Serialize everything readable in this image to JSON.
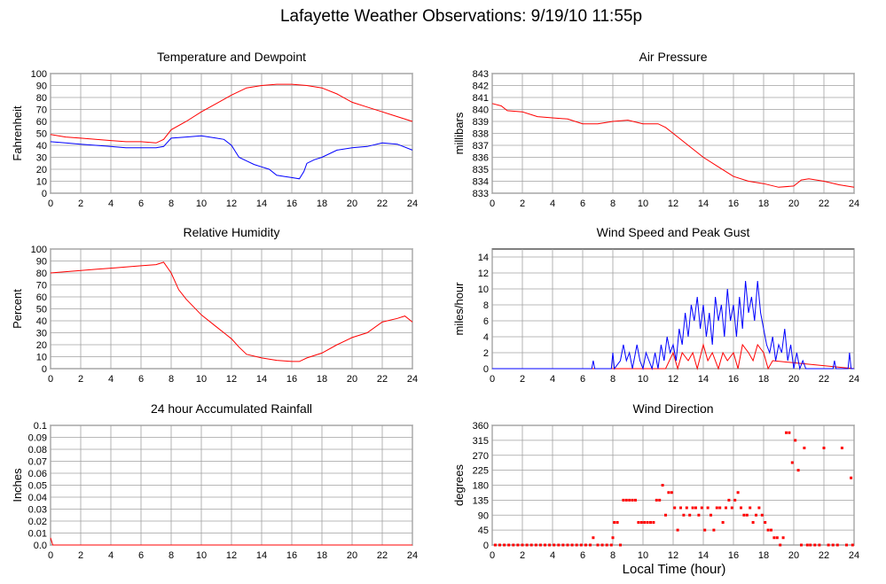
{
  "title": "Lafayette Weather Observations: 9/19/10 11:55p",
  "xaxis_title": "Local Time (hour)",
  "colors": {
    "temperature": "#ff0000",
    "dewpoint": "#0000ff",
    "grid": "#a0a0a0",
    "axis": "#000000"
  },
  "chart_data": [
    {
      "type": "line",
      "title": "Temperature and Dewpoint",
      "ylabel": "Fahrenheit",
      "xlim": [
        0,
        24
      ],
      "ylim": [
        0,
        100
      ],
      "xticks": [
        0,
        2,
        4,
        6,
        8,
        10,
        12,
        14,
        16,
        18,
        20,
        22,
        24
      ],
      "yticks": [
        0,
        10,
        20,
        30,
        40,
        50,
        60,
        70,
        80,
        90,
        100
      ],
      "series": [
        {
          "color": "#ff0000",
          "x": [
            0,
            1,
            2,
            3,
            4,
            5,
            6,
            7,
            7.5,
            8,
            9,
            10,
            11,
            12,
            13,
            14,
            15,
            16,
            17,
            18,
            19,
            20,
            21,
            22,
            23,
            24
          ],
          "y": [
            49,
            47,
            46,
            45,
            44,
            43,
            43,
            42,
            45,
            53,
            60,
            68,
            75,
            82,
            88,
            90,
            91,
            91,
            90,
            88,
            83,
            76,
            72,
            68,
            64,
            60
          ]
        },
        {
          "color": "#0000ff",
          "x": [
            0,
            1,
            2,
            3,
            4,
            5,
            6,
            7,
            7.5,
            8,
            9,
            10,
            11,
            11.5,
            12,
            12.5,
            13,
            13.5,
            14,
            14.5,
            15,
            15.5,
            16,
            16.5,
            16.8,
            17,
            17.5,
            18,
            19,
            20,
            21,
            22,
            23,
            24
          ],
          "y": [
            43,
            42,
            41,
            40,
            39,
            38,
            38,
            38,
            39,
            46,
            47,
            48,
            46,
            45,
            40,
            30,
            27,
            24,
            22,
            20,
            15,
            14,
            13,
            12,
            18,
            25,
            28,
            30,
            36,
            38,
            39,
            42,
            41,
            36
          ]
        }
      ]
    },
    {
      "type": "line",
      "title": "Air Pressure",
      "ylabel": "millibars",
      "xlim": [
        0,
        24
      ],
      "ylim": [
        833,
        843
      ],
      "xticks": [
        0,
        2,
        4,
        6,
        8,
        10,
        12,
        14,
        16,
        18,
        20,
        22,
        24
      ],
      "yticks": [
        833,
        834,
        835,
        836,
        837,
        838,
        839,
        840,
        841,
        842,
        843
      ],
      "series": [
        {
          "color": "#ff0000",
          "x": [
            0,
            0.6,
            1,
            2,
            3,
            4,
            5,
            6,
            7,
            8,
            9,
            10,
            11,
            11.5,
            12,
            13,
            14,
            15,
            16,
            17,
            18,
            19,
            20,
            20.5,
            21,
            22,
            23,
            24
          ],
          "y": [
            840.5,
            840.3,
            839.9,
            839.8,
            839.4,
            839.3,
            839.2,
            838.8,
            838.8,
            839.0,
            839.1,
            838.8,
            838.8,
            838.5,
            838.0,
            837.0,
            836.0,
            835.2,
            834.4,
            834.0,
            833.8,
            833.5,
            833.6,
            834.1,
            834.2,
            834.0,
            833.7,
            833.5
          ]
        }
      ]
    },
    {
      "type": "line",
      "title": "Relative Humidity",
      "ylabel": "Percent",
      "xlim": [
        0,
        24
      ],
      "ylim": [
        0,
        100
      ],
      "xticks": [
        0,
        2,
        4,
        6,
        8,
        10,
        12,
        14,
        16,
        18,
        20,
        22,
        24
      ],
      "yticks": [
        0,
        10,
        20,
        30,
        40,
        50,
        60,
        70,
        80,
        90,
        100
      ],
      "series": [
        {
          "color": "#ff0000",
          "x": [
            0,
            1,
            2,
            3,
            4,
            5,
            6,
            7,
            7.5,
            8,
            8.5,
            9,
            10,
            11,
            12,
            12.5,
            13,
            14,
            15,
            16,
            16.5,
            17,
            18,
            19,
            20,
            21,
            22,
            23,
            23.5,
            24
          ],
          "y": [
            80,
            81,
            82,
            83,
            84,
            85,
            86,
            87,
            89,
            80,
            66,
            58,
            45,
            35,
            25,
            18,
            12,
            9,
            7,
            6,
            6,
            9,
            13,
            20,
            26,
            30,
            39,
            42,
            44,
            39
          ]
        }
      ]
    },
    {
      "type": "line",
      "title": "Wind Speed and Peak Gust",
      "ylabel": "miles/hour",
      "xlim": [
        0,
        24
      ],
      "ylim": [
        0,
        15
      ],
      "xticks": [
        0,
        2,
        4,
        6,
        8,
        10,
        12,
        14,
        16,
        18,
        20,
        22,
        24
      ],
      "yticks": [
        0,
        2,
        4,
        6,
        8,
        10,
        12,
        14
      ],
      "series": [
        {
          "color": "#ff0000",
          "x": [
            0,
            11.5,
            12,
            12.3,
            12.6,
            13,
            13.3,
            13.6,
            14,
            14.3,
            14.6,
            15,
            15.3,
            15.6,
            16,
            16.3,
            16.6,
            17,
            17.3,
            17.6,
            18,
            18.3,
            18.6,
            24
          ],
          "y": [
            0,
            0,
            2,
            0,
            2,
            1,
            2,
            0,
            3,
            1,
            2,
            0,
            2,
            1,
            2,
            0,
            3,
            2,
            1,
            3,
            2,
            0,
            1,
            0
          ]
        },
        {
          "color": "#0000ff",
          "x": [
            0,
            6.6,
            6.7,
            6.8,
            7.5,
            7.9,
            8.0,
            8.1,
            8.5,
            8.7,
            8.9,
            9.1,
            9.3,
            9.6,
            9.8,
            10.0,
            10.2,
            10.4,
            10.6,
            10.8,
            11.0,
            11.2,
            11.4,
            11.6,
            11.8,
            12.0,
            12.2,
            12.4,
            12.6,
            12.8,
            13.0,
            13.2,
            13.4,
            13.6,
            13.8,
            14.0,
            14.2,
            14.4,
            14.6,
            14.8,
            15.0,
            15.2,
            15.4,
            15.6,
            15.8,
            16.0,
            16.2,
            16.4,
            16.6,
            16.8,
            17.0,
            17.2,
            17.4,
            17.6,
            17.8,
            18.0,
            18.2,
            18.4,
            18.6,
            18.8,
            19.0,
            19.2,
            19.4,
            19.6,
            19.8,
            20.0,
            20.2,
            20.4,
            20.6,
            20.8,
            22.6,
            22.7,
            22.8,
            23.6,
            23.7,
            23.8,
            24.0
          ],
          "y": [
            0,
            0,
            1,
            0,
            0,
            0,
            2,
            0,
            1,
            3,
            1,
            2,
            0,
            3,
            1,
            0,
            2,
            1,
            0,
            2,
            0,
            3,
            1,
            4,
            2,
            3,
            1,
            5,
            3,
            7,
            4,
            8,
            6,
            9,
            5,
            8,
            4,
            7,
            3,
            9,
            6,
            8,
            4,
            10,
            6,
            8,
            4,
            9,
            5,
            11,
            7,
            9,
            6,
            11,
            7,
            5,
            3,
            2,
            4,
            1,
            3,
            2,
            5,
            1,
            3,
            0,
            2,
            0,
            1,
            0,
            0,
            1,
            0,
            0,
            2,
            0,
            0
          ]
        }
      ]
    },
    {
      "type": "line",
      "title": "24 hour Accumulated Rainfall",
      "ylabel": "Inches",
      "xlim": [
        0,
        24
      ],
      "ylim": [
        0,
        0.1
      ],
      "xticks": [
        0,
        2,
        4,
        6,
        8,
        10,
        12,
        14,
        16,
        18,
        20,
        22,
        24
      ],
      "yticks": [
        0.0,
        0.01,
        0.02,
        0.03,
        0.04,
        0.05,
        0.06,
        0.07,
        0.08,
        0.09,
        0.1
      ],
      "ytick_labels": [
        "0.0",
        "0.01",
        "0.02",
        "0.03",
        "0.04",
        "0.05",
        "0.06",
        "0.07",
        "0.08",
        "0.09",
        "0.1"
      ],
      "series": [
        {
          "color": "#ff0000",
          "x": [
            0,
            0.05,
            0.15,
            24
          ],
          "y": [
            0.006,
            0.004,
            0,
            0
          ]
        }
      ]
    },
    {
      "type": "scatter",
      "title": "Wind Direction",
      "ylabel": "degrees",
      "xlim": [
        0,
        24
      ],
      "ylim": [
        0,
        360
      ],
      "xticks": [
        0,
        2,
        4,
        6,
        8,
        10,
        12,
        14,
        16,
        18,
        20,
        22,
        24
      ],
      "yticks": [
        0,
        45,
        90,
        135,
        180,
        225,
        270,
        315,
        360
      ],
      "series": [
        {
          "color": "#ff0000",
          "x": [
            0.2,
            0.5,
            0.8,
            1.1,
            1.4,
            1.7,
            2.0,
            2.3,
            2.6,
            2.9,
            3.2,
            3.5,
            3.8,
            4.1,
            4.4,
            4.7,
            5.0,
            5.3,
            5.6,
            5.9,
            6.2,
            6.5,
            6.7,
            7.0,
            7.3,
            7.6,
            7.9,
            8.0,
            8.1,
            8.3,
            8.5,
            8.7,
            8.9,
            9.1,
            9.3,
            9.5,
            9.7,
            9.9,
            10.1,
            10.3,
            10.5,
            10.7,
            10.9,
            11.1,
            11.3,
            11.5,
            11.7,
            11.9,
            12.1,
            12.3,
            12.5,
            12.7,
            12.9,
            13.1,
            13.3,
            13.5,
            13.7,
            13.9,
            14.1,
            14.3,
            14.5,
            14.7,
            14.9,
            15.1,
            15.3,
            15.5,
            15.7,
            15.9,
            16.1,
            16.3,
            16.5,
            16.7,
            16.9,
            17.1,
            17.3,
            17.5,
            17.7,
            17.9,
            18.1,
            18.3,
            18.5,
            18.7,
            18.9,
            19.1,
            19.3,
            19.5,
            19.7,
            19.9,
            20.1,
            20.3,
            20.5,
            20.7,
            20.9,
            21.1,
            21.4,
            21.7,
            22.0,
            22.3,
            22.6,
            22.9,
            23.2,
            23.5,
            23.8,
            23.9
          ],
          "y": [
            0,
            0,
            0,
            0,
            0,
            0,
            0,
            0,
            0,
            0,
            0,
            0,
            0,
            0,
            0,
            0,
            0,
            0,
            0,
            0,
            0,
            0,
            22,
            0,
            0,
            0,
            0,
            22,
            68,
            68,
            0,
            135,
            135,
            135,
            135,
            135,
            68,
            68,
            68,
            68,
            68,
            68,
            135,
            135,
            180,
            90,
            158,
            158,
            112,
            45,
            112,
            90,
            112,
            90,
            112,
            112,
            90,
            112,
            45,
            112,
            90,
            45,
            112,
            112,
            68,
            112,
            135,
            112,
            135,
            158,
            112,
            90,
            90,
            112,
            68,
            90,
            112,
            90,
            68,
            45,
            45,
            22,
            22,
            0,
            22,
            338,
            338,
            248,
            315,
            225,
            0,
            292,
            0,
            0,
            0,
            0,
            292,
            0,
            0,
            0,
            292,
            0,
            202,
            0
          ]
        }
      ]
    }
  ]
}
